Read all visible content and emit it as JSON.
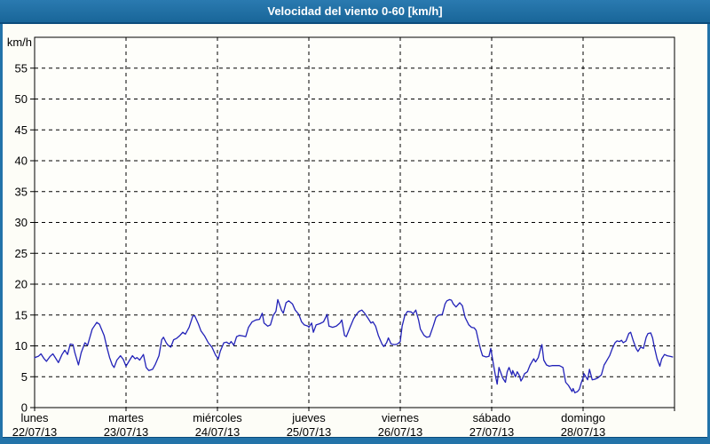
{
  "window": {
    "title": "Velocidad del viento 0-60 [km/h]"
  },
  "colors": {
    "frame_blue": "#2373a9",
    "titlebar_top": "#2a7ab0",
    "titlebar_bottom": "#196699",
    "titlebar_edge": "#0b4c7c",
    "chart_bg": "#fdfdf7",
    "plot_bg": "#fefefa",
    "grid": "#000000",
    "axis": "#000000",
    "line": "#2222b8",
    "text": "#000000",
    "title_text": "#ffffff"
  },
  "chart_data": {
    "type": "line",
    "title": "Velocidad del viento 0-60 [km/h]",
    "ylabel": "km/h",
    "xlabel": "",
    "ylim": [
      0,
      60
    ],
    "xlim_days": [
      0,
      7
    ],
    "ytick_step": 5,
    "yticks": [
      0,
      5,
      10,
      15,
      20,
      25,
      30,
      35,
      40,
      45,
      50,
      55
    ],
    "grid": "dashed",
    "legend": "none",
    "x_days": [
      {
        "name": "lunes",
        "date": "22/07/13"
      },
      {
        "name": "martes",
        "date": "23/07/13"
      },
      {
        "name": "miércoles",
        "date": "24/07/13"
      },
      {
        "name": "jueves",
        "date": "25/07/13"
      },
      {
        "name": "viernes",
        "date": "26/07/13"
      },
      {
        "name": "sábado",
        "date": "27/07/13"
      },
      {
        "name": "domingo",
        "date": "28/07/13"
      }
    ],
    "series": [
      {
        "name": "velocidad del viento",
        "units": "km/h",
        "points": [
          [
            0.0,
            8.1
          ],
          [
            0.04,
            8.3
          ],
          [
            0.07,
            8.7
          ],
          [
            0.1,
            8.0
          ],
          [
            0.13,
            7.5
          ],
          [
            0.17,
            8.3
          ],
          [
            0.2,
            8.7
          ],
          [
            0.23,
            8.0
          ],
          [
            0.26,
            7.3
          ],
          [
            0.3,
            8.6
          ],
          [
            0.33,
            9.3
          ],
          [
            0.36,
            8.6
          ],
          [
            0.39,
            10.3
          ],
          [
            0.42,
            10.2
          ],
          [
            0.44,
            8.9
          ],
          [
            0.48,
            6.9
          ],
          [
            0.51,
            8.9
          ],
          [
            0.55,
            10.5
          ],
          [
            0.58,
            10.1
          ],
          [
            0.63,
            12.7
          ],
          [
            0.68,
            13.8
          ],
          [
            0.71,
            13.5
          ],
          [
            0.76,
            11.7
          ],
          [
            0.79,
            9.8
          ],
          [
            0.82,
            8.1
          ],
          [
            0.85,
            6.9
          ],
          [
            0.87,
            6.5
          ],
          [
            0.9,
            7.7
          ],
          [
            0.94,
            8.4
          ],
          [
            0.97,
            7.8
          ],
          [
            1.0,
            6.7
          ],
          [
            1.04,
            7.7
          ],
          [
            1.07,
            8.4
          ],
          [
            1.1,
            7.9
          ],
          [
            1.12,
            8.1
          ],
          [
            1.15,
            7.7
          ],
          [
            1.19,
            8.6
          ],
          [
            1.22,
            6.5
          ],
          [
            1.25,
            6.0
          ],
          [
            1.29,
            6.2
          ],
          [
            1.32,
            7.0
          ],
          [
            1.36,
            8.4
          ],
          [
            1.39,
            11.0
          ],
          [
            1.41,
            11.4
          ],
          [
            1.44,
            10.5
          ],
          [
            1.46,
            10.1
          ],
          [
            1.49,
            9.8
          ],
          [
            1.52,
            11.0
          ],
          [
            1.55,
            11.2
          ],
          [
            1.59,
            11.7
          ],
          [
            1.62,
            12.2
          ],
          [
            1.65,
            11.9
          ],
          [
            1.69,
            13.0
          ],
          [
            1.73,
            14.8
          ],
          [
            1.75,
            14.9
          ],
          [
            1.79,
            13.6
          ],
          [
            1.82,
            12.4
          ],
          [
            1.86,
            11.6
          ],
          [
            1.9,
            10.5
          ],
          [
            1.94,
            9.8
          ],
          [
            1.98,
            8.5
          ],
          [
            2.01,
            7.9
          ],
          [
            2.03,
            9.1
          ],
          [
            2.07,
            10.5
          ],
          [
            2.1,
            10.6
          ],
          [
            2.13,
            10.3
          ],
          [
            2.15,
            10.7
          ],
          [
            2.18,
            10.1
          ],
          [
            2.21,
            11.5
          ],
          [
            2.24,
            11.7
          ],
          [
            2.28,
            11.6
          ],
          [
            2.31,
            11.5
          ],
          [
            2.34,
            13.0
          ],
          [
            2.38,
            13.9
          ],
          [
            2.42,
            14.2
          ],
          [
            2.46,
            14.3
          ],
          [
            2.49,
            15.3
          ],
          [
            2.51,
            13.7
          ],
          [
            2.55,
            13.2
          ],
          [
            2.58,
            13.4
          ],
          [
            2.61,
            14.9
          ],
          [
            2.64,
            15.6
          ],
          [
            2.66,
            17.5
          ],
          [
            2.7,
            15.8
          ],
          [
            2.72,
            15.3
          ],
          [
            2.75,
            17.0
          ],
          [
            2.78,
            17.3
          ],
          [
            2.82,
            16.8
          ],
          [
            2.85,
            15.8
          ],
          [
            2.89,
            15.1
          ],
          [
            2.92,
            13.9
          ],
          [
            2.95,
            13.4
          ],
          [
            2.99,
            13.2
          ],
          [
            3.0,
            13.0
          ],
          [
            3.03,
            13.7
          ],
          [
            3.05,
            12.2
          ],
          [
            3.08,
            13.4
          ],
          [
            3.12,
            13.6
          ],
          [
            3.16,
            13.9
          ],
          [
            3.2,
            15.1
          ],
          [
            3.22,
            13.2
          ],
          [
            3.26,
            13.0
          ],
          [
            3.3,
            13.2
          ],
          [
            3.34,
            13.7
          ],
          [
            3.36,
            14.2
          ],
          [
            3.39,
            11.7
          ],
          [
            3.41,
            11.5
          ],
          [
            3.45,
            13.0
          ],
          [
            3.49,
            14.4
          ],
          [
            3.52,
            15.1
          ],
          [
            3.55,
            15.6
          ],
          [
            3.58,
            15.8
          ],
          [
            3.61,
            15.3
          ],
          [
            3.65,
            14.4
          ],
          [
            3.68,
            13.7
          ],
          [
            3.7,
            13.9
          ],
          [
            3.73,
            13.2
          ],
          [
            3.76,
            11.7
          ],
          [
            3.8,
            10.3
          ],
          [
            3.82,
            9.9
          ],
          [
            3.85,
            10.5
          ],
          [
            3.87,
            11.3
          ],
          [
            3.9,
            10.3
          ],
          [
            3.94,
            10.2
          ],
          [
            3.97,
            10.3
          ],
          [
            4.0,
            10.7
          ],
          [
            4.02,
            13.2
          ],
          [
            4.05,
            14.9
          ],
          [
            4.08,
            15.6
          ],
          [
            4.12,
            15.5
          ],
          [
            4.14,
            15.2
          ],
          [
            4.17,
            15.8
          ],
          [
            4.2,
            14.2
          ],
          [
            4.22,
            12.7
          ],
          [
            4.26,
            11.7
          ],
          [
            4.29,
            11.4
          ],
          [
            4.32,
            11.5
          ],
          [
            4.36,
            13.2
          ],
          [
            4.39,
            14.6
          ],
          [
            4.42,
            15.0
          ],
          [
            4.46,
            15.1
          ],
          [
            4.49,
            16.8
          ],
          [
            4.51,
            17.3
          ],
          [
            4.54,
            17.5
          ],
          [
            4.56,
            17.4
          ],
          [
            4.58,
            16.8
          ],
          [
            4.61,
            16.3
          ],
          [
            4.65,
            17.0
          ],
          [
            4.68,
            16.5
          ],
          [
            4.71,
            14.6
          ],
          [
            4.75,
            13.4
          ],
          [
            4.78,
            13.0
          ],
          [
            4.81,
            12.9
          ],
          [
            4.83,
            12.5
          ],
          [
            4.86,
            10.5
          ],
          [
            4.88,
            9.4
          ],
          [
            4.9,
            8.4
          ],
          [
            4.94,
            8.2
          ],
          [
            4.97,
            8.3
          ],
          [
            4.99,
            9.6
          ],
          [
            5.02,
            6.9
          ],
          [
            5.04,
            5.3
          ],
          [
            5.06,
            3.8
          ],
          [
            5.08,
            6.5
          ],
          [
            5.12,
            4.8
          ],
          [
            5.15,
            4.1
          ],
          [
            5.17,
            5.8
          ],
          [
            5.19,
            6.5
          ],
          [
            5.22,
            5.3
          ],
          [
            5.23,
            6.0
          ],
          [
            5.26,
            5.0
          ],
          [
            5.28,
            5.8
          ],
          [
            5.3,
            5.3
          ],
          [
            5.32,
            4.3
          ],
          [
            5.34,
            4.8
          ],
          [
            5.36,
            5.5
          ],
          [
            5.39,
            5.8
          ],
          [
            5.42,
            6.9
          ],
          [
            5.46,
            7.9
          ],
          [
            5.48,
            7.4
          ],
          [
            5.51,
            8.1
          ],
          [
            5.54,
            9.8
          ],
          [
            5.55,
            10.2
          ],
          [
            5.57,
            7.7
          ],
          [
            5.6,
            6.9
          ],
          [
            5.63,
            6.7
          ],
          [
            5.66,
            6.8
          ],
          [
            5.7,
            6.8
          ],
          [
            5.74,
            6.8
          ],
          [
            5.78,
            6.5
          ],
          [
            5.81,
            4.1
          ],
          [
            5.84,
            3.6
          ],
          [
            5.86,
            3.1
          ],
          [
            5.88,
            2.6
          ],
          [
            5.89,
            3.1
          ],
          [
            5.91,
            2.4
          ],
          [
            5.94,
            2.6
          ],
          [
            5.96,
            3.0
          ],
          [
            5.98,
            4.0
          ],
          [
            6.0,
            4.8
          ],
          [
            6.01,
            5.5
          ],
          [
            6.03,
            5.0
          ],
          [
            6.05,
            4.5
          ],
          [
            6.07,
            6.2
          ],
          [
            6.1,
            4.5
          ],
          [
            6.13,
            4.6
          ],
          [
            6.16,
            4.8
          ],
          [
            6.2,
            5.3
          ],
          [
            6.23,
            6.9
          ],
          [
            6.25,
            7.4
          ],
          [
            6.29,
            8.4
          ],
          [
            6.32,
            9.6
          ],
          [
            6.35,
            10.5
          ],
          [
            6.37,
            10.8
          ],
          [
            6.4,
            10.7
          ],
          [
            6.42,
            10.9
          ],
          [
            6.44,
            10.5
          ],
          [
            6.47,
            10.8
          ],
          [
            6.5,
            12.0
          ],
          [
            6.52,
            12.2
          ],
          [
            6.55,
            10.8
          ],
          [
            6.58,
            9.6
          ],
          [
            6.6,
            9.1
          ],
          [
            6.63,
            9.8
          ],
          [
            6.66,
            9.6
          ],
          [
            6.69,
            11.4
          ],
          [
            6.71,
            12.0
          ],
          [
            6.74,
            12.1
          ],
          [
            6.76,
            11.3
          ],
          [
            6.78,
            9.8
          ],
          [
            6.81,
            7.9
          ],
          [
            6.84,
            6.7
          ],
          [
            6.86,
            7.9
          ],
          [
            6.89,
            8.6
          ],
          [
            6.92,
            8.4
          ],
          [
            6.95,
            8.3
          ],
          [
            6.98,
            8.2
          ]
        ]
      }
    ]
  }
}
